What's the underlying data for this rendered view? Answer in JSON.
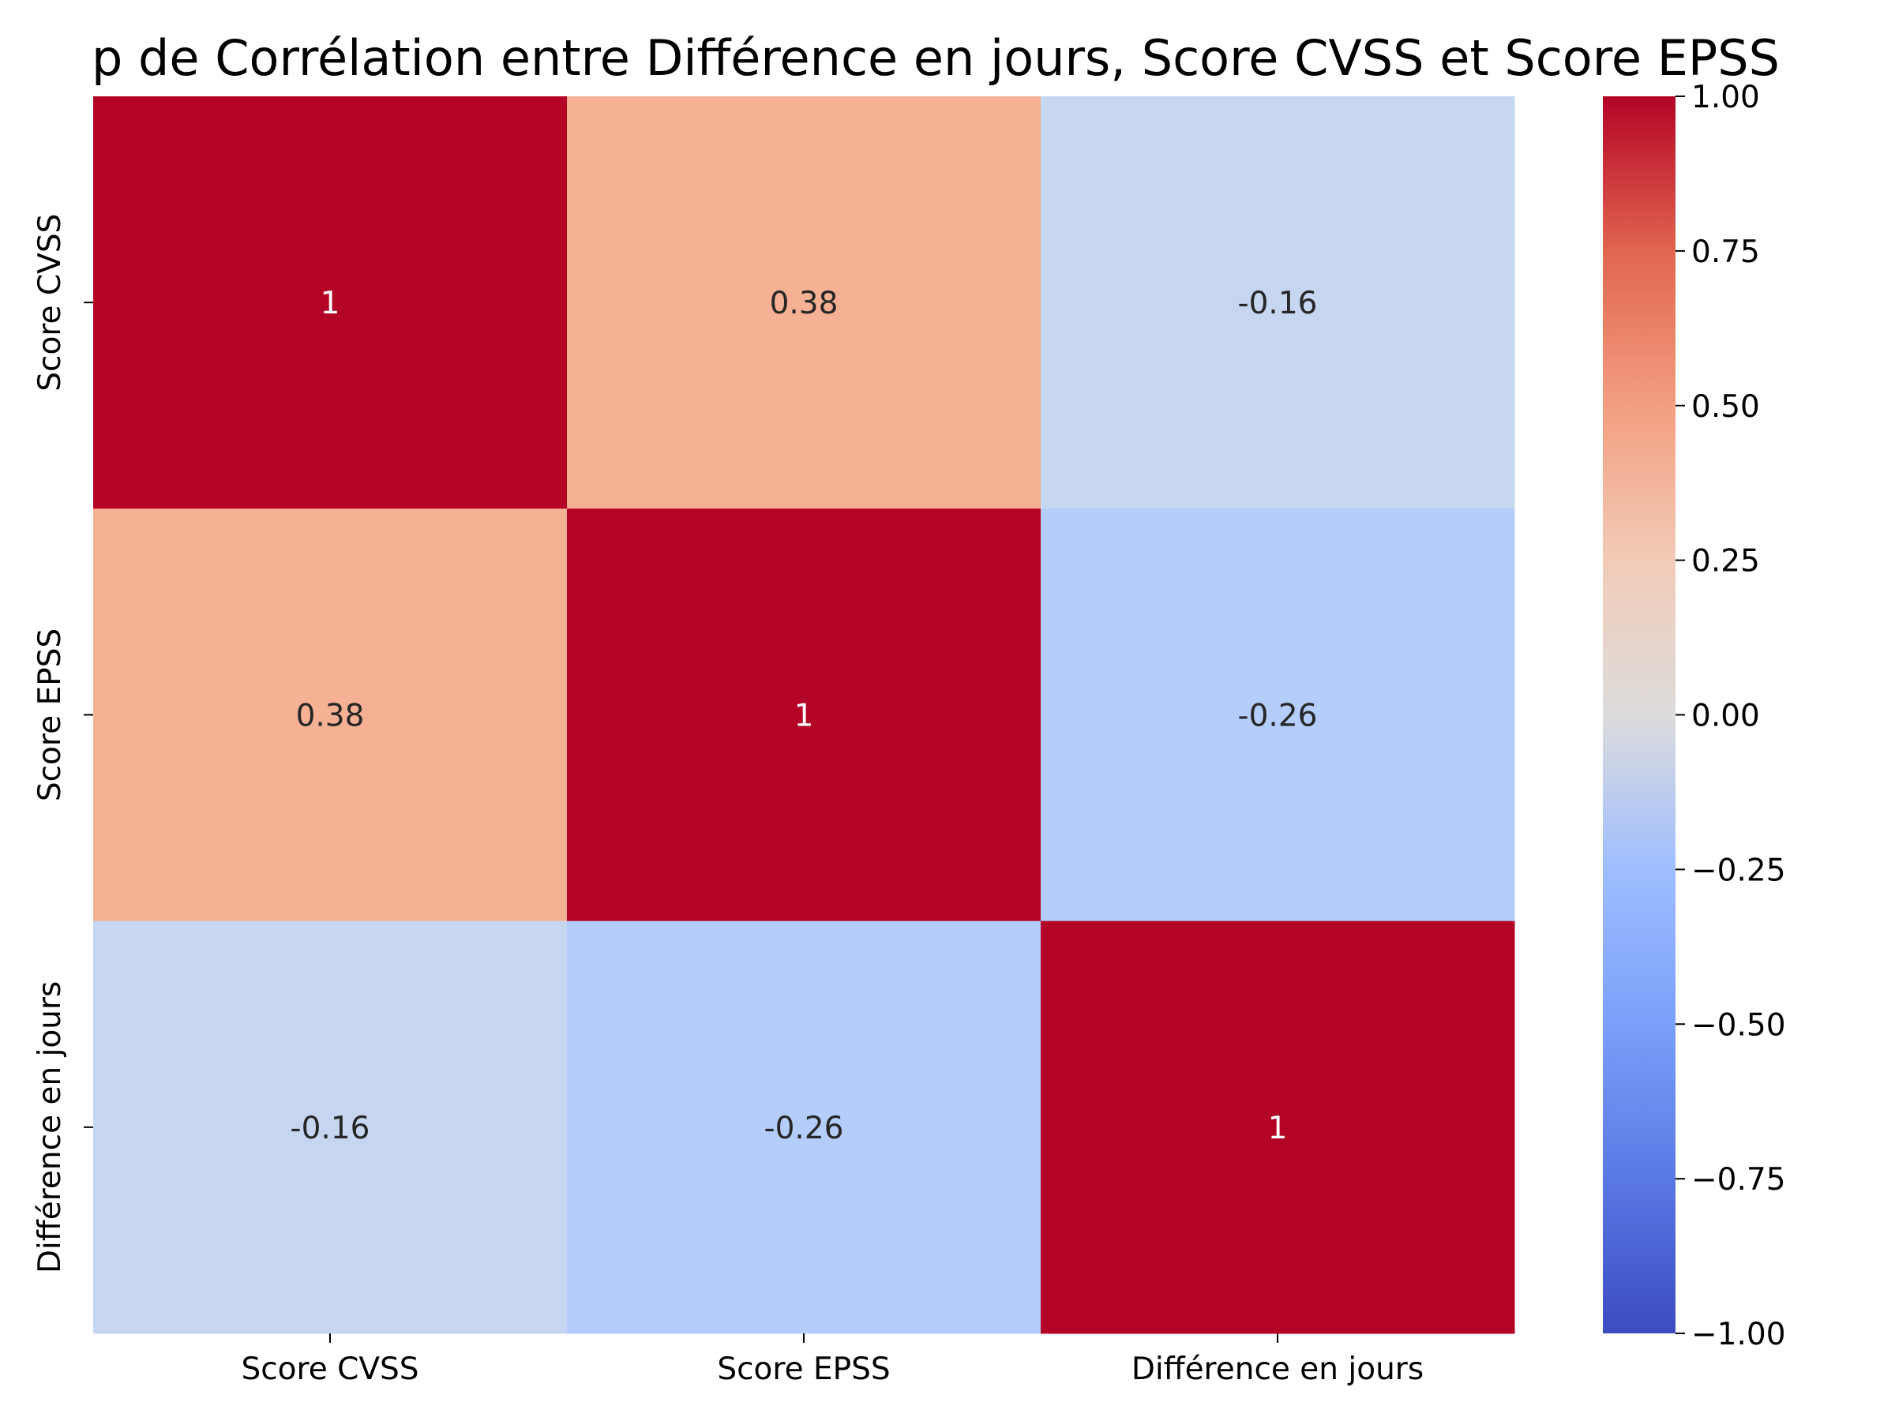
{
  "chart_data": {
    "type": "heatmap",
    "title": "p de Corrélation entre Différence en jours, Score CVSS et Score EPSS",
    "x_labels": [
      "Score CVSS",
      "Score EPSS",
      "Différence en jours"
    ],
    "y_labels": [
      "Score CVSS",
      "Score EPSS",
      "Différence en jours"
    ],
    "values": [
      [
        1,
        0.38,
        -0.16
      ],
      [
        0.38,
        1,
        -0.26
      ],
      [
        -0.16,
        -0.26,
        1
      ]
    ],
    "annotations": [
      [
        "1",
        "0.38",
        "-0.16"
      ],
      [
        "0.38",
        "1",
        "-0.26"
      ],
      [
        "-0.16",
        "-0.26",
        "1"
      ]
    ],
    "colormap": "coolwarm",
    "vmin": -1,
    "vmax": 1,
    "colorbar_ticks": [
      "1.00",
      "0.75",
      "0.50",
      "0.25",
      "0.00",
      "−0.25",
      "−0.50",
      "−0.75",
      "−1.00"
    ],
    "colorbar_tick_values": [
      1,
      0.75,
      0.5,
      0.25,
      0,
      -0.25,
      -0.5,
      -0.75,
      -1
    ],
    "colors": {
      "strong_positive": "#b40426",
      "weak_positive": "#f6b194",
      "weak_negative_016": "#c6d6f0",
      "weak_negative_026": "#b5cdfa",
      "neutral": "#dddcdc",
      "strong_negative": "#3b4cc0"
    }
  }
}
